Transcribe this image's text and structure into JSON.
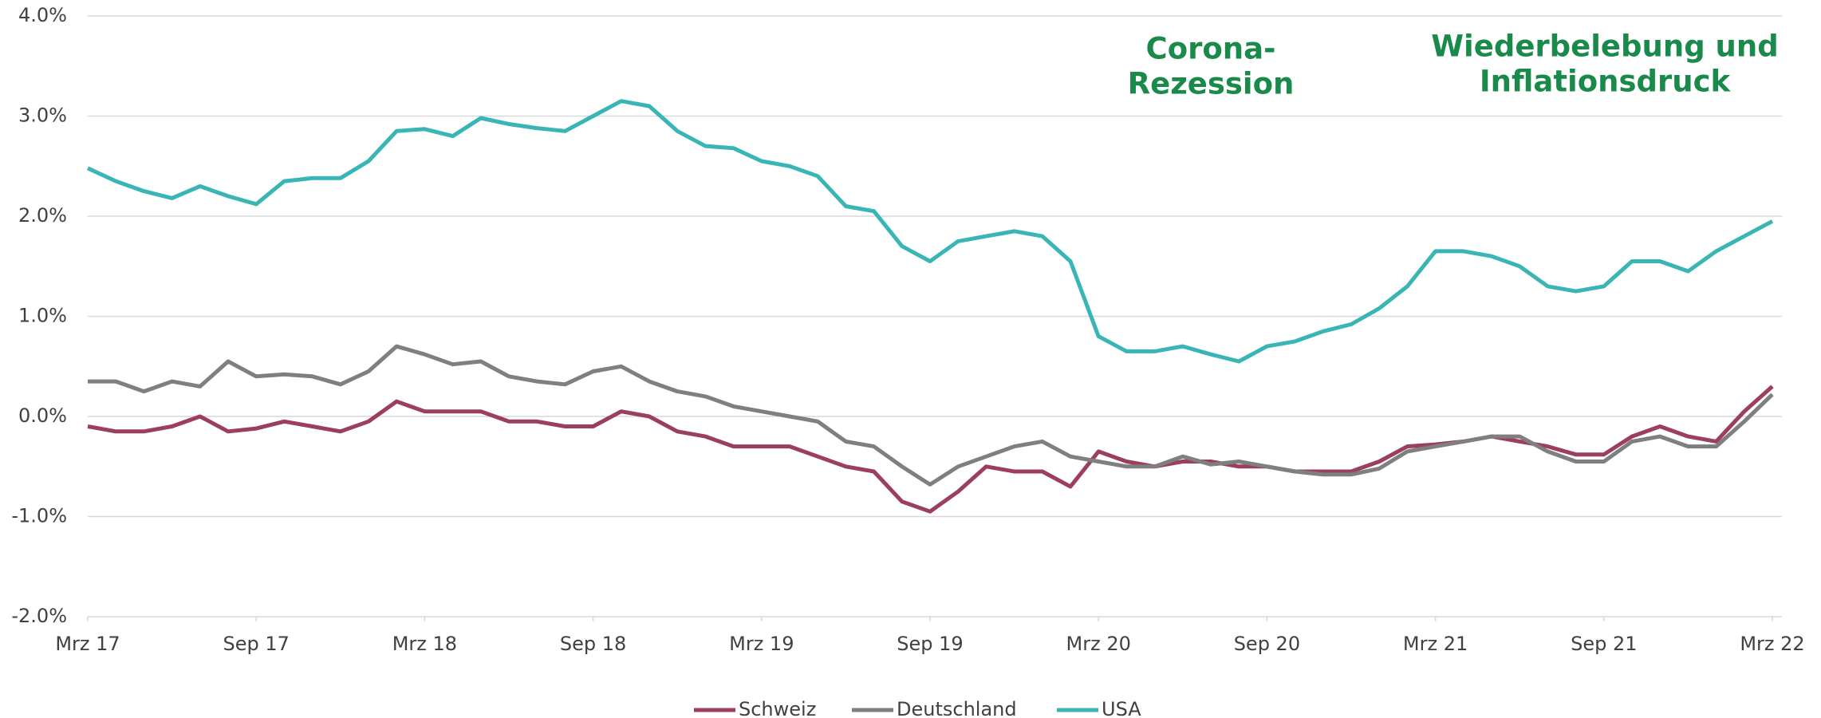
{
  "chart_data": {
    "type": "line",
    "x": [
      "2017-03",
      "2017-04",
      "2017-05",
      "2017-06",
      "2017-07",
      "2017-08",
      "2017-09",
      "2017-10",
      "2017-11",
      "2017-12",
      "2018-01",
      "2018-02",
      "2018-03",
      "2018-04",
      "2018-05",
      "2018-06",
      "2018-07",
      "2018-08",
      "2018-09",
      "2018-10",
      "2018-11",
      "2018-12",
      "2019-01",
      "2019-02",
      "2019-03",
      "2019-04",
      "2019-05",
      "2019-06",
      "2019-07",
      "2019-08",
      "2019-09",
      "2019-10",
      "2019-11",
      "2019-12",
      "2020-01",
      "2020-02",
      "2020-03",
      "2020-04",
      "2020-05",
      "2020-06",
      "2020-07",
      "2020-08",
      "2020-09",
      "2020-10",
      "2020-11",
      "2020-12",
      "2021-01",
      "2021-02",
      "2021-03",
      "2021-04",
      "2021-05",
      "2021-06",
      "2021-07",
      "2021-08",
      "2021-09",
      "2021-10",
      "2021-11",
      "2021-12",
      "2022-01",
      "2022-02",
      "2022-03"
    ],
    "series": [
      {
        "name": "Schweiz",
        "color": "#9b3f5c",
        "values": [
          -0.1,
          -0.15,
          -0.15,
          -0.1,
          0.0,
          -0.15,
          -0.12,
          -0.05,
          -0.1,
          -0.15,
          -0.05,
          0.15,
          0.05,
          0.05,
          0.05,
          -0.05,
          -0.05,
          -0.1,
          -0.1,
          0.05,
          0.0,
          -0.15,
          -0.2,
          -0.3,
          -0.3,
          -0.3,
          -0.4,
          -0.5,
          -0.55,
          -0.85,
          -0.95,
          -0.75,
          -0.5,
          -0.55,
          -0.55,
          -0.7,
          -0.35,
          -0.45,
          -0.5,
          -0.45,
          -0.45,
          -0.5,
          -0.5,
          -0.55,
          -0.55,
          -0.55,
          -0.45,
          -0.3,
          -0.28,
          -0.25,
          -0.2,
          -0.25,
          -0.3,
          -0.38,
          -0.38,
          -0.2,
          -0.1,
          -0.2,
          -0.25,
          0.05,
          0.3
        ]
      },
      {
        "name": "Deutschland",
        "color": "#7f7f7f",
        "values": [
          0.35,
          0.35,
          0.25,
          0.35,
          0.3,
          0.55,
          0.4,
          0.42,
          0.4,
          0.32,
          0.45,
          0.7,
          0.62,
          0.52,
          0.55,
          0.4,
          0.35,
          0.32,
          0.45,
          0.5,
          0.35,
          0.25,
          0.2,
          0.1,
          0.05,
          0.0,
          -0.05,
          -0.25,
          -0.3,
          -0.5,
          -0.68,
          -0.5,
          -0.4,
          -0.3,
          -0.25,
          -0.4,
          -0.45,
          -0.5,
          -0.5,
          -0.4,
          -0.48,
          -0.45,
          -0.5,
          -0.55,
          -0.58,
          -0.58,
          -0.52,
          -0.35,
          -0.3,
          -0.25,
          -0.2,
          -0.2,
          -0.35,
          -0.45,
          -0.45,
          -0.25,
          -0.2,
          -0.3,
          -0.3,
          -0.05,
          0.22
        ]
      },
      {
        "name": "USA",
        "color": "#3ab5b5",
        "values": [
          2.48,
          2.35,
          2.25,
          2.18,
          2.3,
          2.2,
          2.12,
          2.35,
          2.38,
          2.38,
          2.55,
          2.85,
          2.87,
          2.8,
          2.98,
          2.92,
          2.88,
          2.85,
          3.0,
          3.15,
          3.1,
          2.85,
          2.7,
          2.68,
          2.55,
          2.5,
          2.4,
          2.1,
          2.05,
          1.7,
          1.55,
          1.75,
          1.8,
          1.85,
          1.8,
          1.55,
          0.8,
          0.65,
          0.65,
          0.7,
          0.62,
          0.55,
          0.7,
          0.75,
          0.85,
          0.92,
          1.08,
          1.3,
          1.65,
          1.65,
          1.6,
          1.5,
          1.3,
          1.25,
          1.3,
          1.55,
          1.55,
          1.45,
          1.65,
          1.8,
          1.95
        ]
      }
    ],
    "xticks": [
      {
        "value": "2017-03",
        "label": "Mrz 17"
      },
      {
        "value": "2017-09",
        "label": "Sep 17"
      },
      {
        "value": "2018-03",
        "label": "Mrz 18"
      },
      {
        "value": "2018-09",
        "label": "Sep 18"
      },
      {
        "value": "2019-03",
        "label": "Mrz 19"
      },
      {
        "value": "2019-09",
        "label": "Sep 19"
      },
      {
        "value": "2020-03",
        "label": "Mrz 20"
      },
      {
        "value": "2020-09",
        "label": "Sep 20"
      },
      {
        "value": "2021-03",
        "label": "Mrz 21"
      },
      {
        "value": "2021-09",
        "label": "Sep 21"
      },
      {
        "value": "2022-03",
        "label": "Mrz 22"
      }
    ],
    "ylim": [
      -2,
      4
    ],
    "yticks": [
      {
        "value": -2,
        "label": "-2.0%"
      },
      {
        "value": -1,
        "label": "-1.0%"
      },
      {
        "value": 0,
        "label": "0.0%"
      },
      {
        "value": 1,
        "label": "1.0%"
      },
      {
        "value": 2,
        "label": "2.0%"
      },
      {
        "value": 3,
        "label": "3.0%"
      },
      {
        "value": 4,
        "label": "4.0%"
      }
    ],
    "grid": true,
    "legend": "bottom",
    "annotations": [
      {
        "lines": [
          "Corona-",
          "Rezession"
        ]
      },
      {
        "lines": [
          "Wiederbelebung und",
          "Inflationsdruck"
        ]
      }
    ]
  }
}
